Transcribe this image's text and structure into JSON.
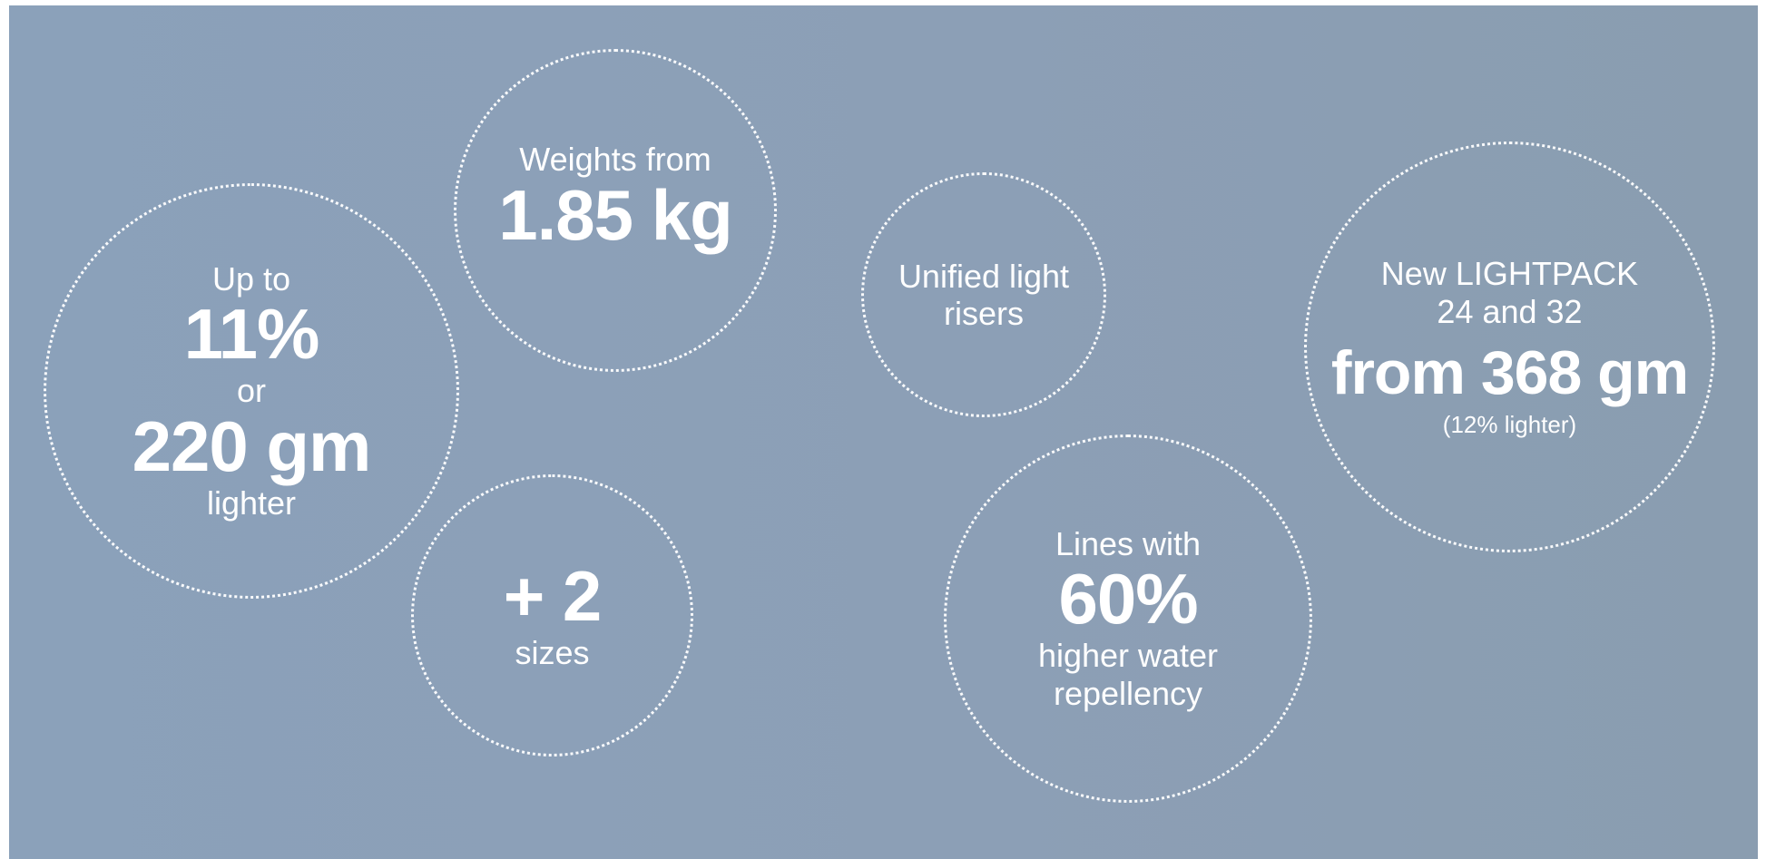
{
  "features": {
    "weight": {
      "top": "Weights from",
      "value": "1.85 kg"
    },
    "lighter": {
      "top": "Up to",
      "value1": "11%",
      "middle": "or",
      "value2": "220 gm",
      "bottom": "lighter"
    },
    "sizes": {
      "value": "+ 2",
      "bottom": "sizes"
    },
    "risers": {
      "line1": "Unified light",
      "line2": "risers"
    },
    "lightpack": {
      "line1": "New LIGHTPACK",
      "line2": "24 and 32",
      "value": "from 368 gm",
      "note": "(12% lighter)"
    },
    "lines": {
      "top": "Lines with",
      "value": "60%",
      "line1": "higher water",
      "line2": "repellency"
    }
  }
}
